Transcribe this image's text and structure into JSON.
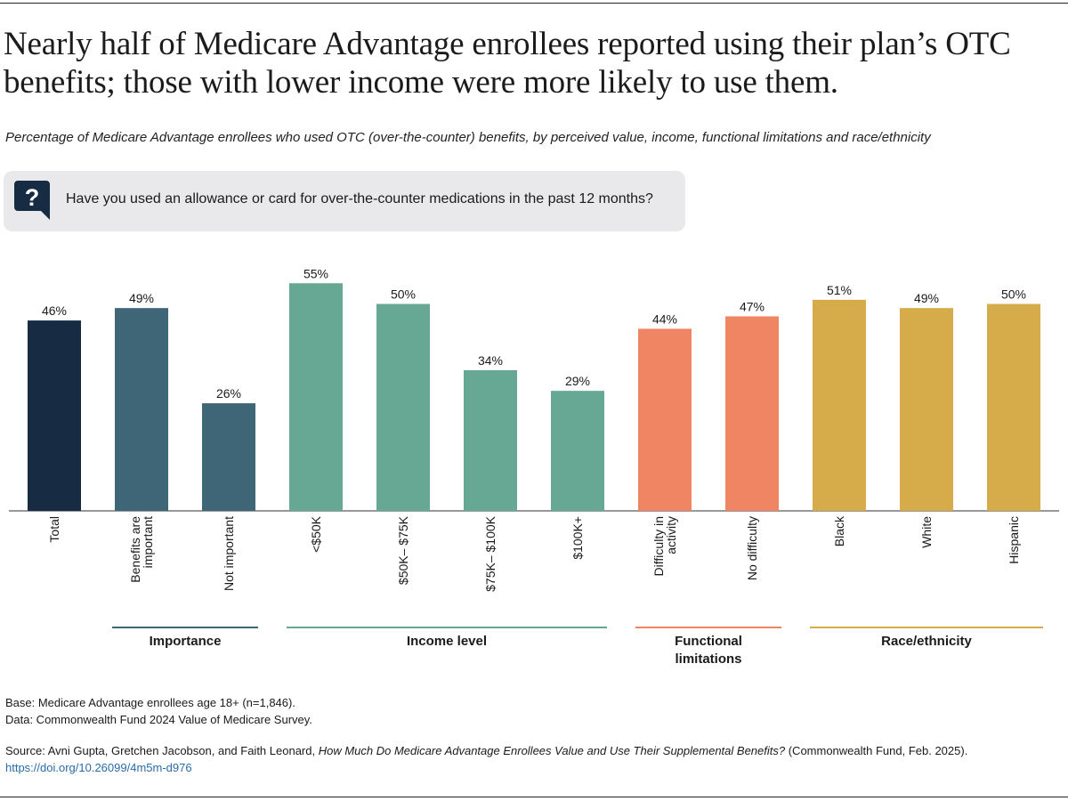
{
  "title": "Nearly half of Medicare Advantage enrollees reported using their plan’s OTC benefits; those with lower income were more likely to use them.",
  "subtitle": "Percentage of Medicare Advantage enrollees who used OTC (over-the-counter) benefits, by perceived value, income, functional limitations and race/ethnicity",
  "question": {
    "icon": "question-bubble-icon",
    "text": "Have you used an allowance or card for over-the-counter medications in the past 12 months?"
  },
  "colors": {
    "total": "#172b42",
    "importance": "#3f6677",
    "income": "#67a894",
    "functional": "#f08563",
    "race": "#d6ab49"
  },
  "chart_data": {
    "type": "bar",
    "title": "Percentage of Medicare Advantage enrollees who used OTC (over-the-counter) benefits",
    "ylim": [
      0,
      55
    ],
    "categories": [
      "Total",
      "Benefits are important",
      "Not important",
      "<$50K",
      "$50K– $75K",
      "$75K– $100K",
      "$100K+",
      "Difficulty in activity",
      "No difficulty",
      "Black",
      "White",
      "Hispanic"
    ],
    "tick_lines": [
      [
        "Total"
      ],
      [
        "Benefits are",
        "important"
      ],
      [
        "Not important"
      ],
      [
        "<$50K"
      ],
      [
        "$50K– $75K"
      ],
      [
        "$75K– $100K"
      ],
      [
        "$100K+"
      ],
      [
        "Difficulty in",
        "activity"
      ],
      [
        "No difficulty"
      ],
      [
        "Black"
      ],
      [
        "White"
      ],
      [
        "Hispanic"
      ]
    ],
    "values": [
      46,
      49,
      26,
      55,
      50,
      34,
      29,
      44,
      47,
      51,
      49,
      50
    ],
    "value_labels": [
      "46%",
      "49%",
      "26%",
      "55%",
      "50%",
      "34%",
      "29%",
      "44%",
      "47%",
      "51%",
      "49%",
      "50%"
    ],
    "bar_groups": [
      "total",
      "importance",
      "importance",
      "income",
      "income",
      "income",
      "income",
      "functional",
      "functional",
      "race",
      "race",
      "race"
    ],
    "groups": [
      {
        "key": "importance",
        "label": "Importance",
        "from": 1,
        "to": 2
      },
      {
        "key": "income",
        "label": "Income level",
        "from": 3,
        "to": 6
      },
      {
        "key": "functional",
        "label": "Functional limitations",
        "from": 7,
        "to": 8
      },
      {
        "key": "race",
        "label": "Race/ethnicity",
        "from": 9,
        "to": 11
      }
    ]
  },
  "notes": {
    "base": "Base: Medicare Advantage enrollees age 18+ (n=1,846).",
    "data": "Data: Commonwealth Fund 2024 Value of Medicare Survey."
  },
  "source": {
    "prefix": "Source: Avni Gupta, Gretchen Jacobson, and Faith Leonard, ",
    "title": "How Much Do Medicare Advantage Enrollees Value and Use Their Supplemental Benefits?",
    "suffix": " (Commonwealth Fund, Feb. 2025).",
    "doi": "https://doi.org/10.26099/4m5m-d976"
  }
}
